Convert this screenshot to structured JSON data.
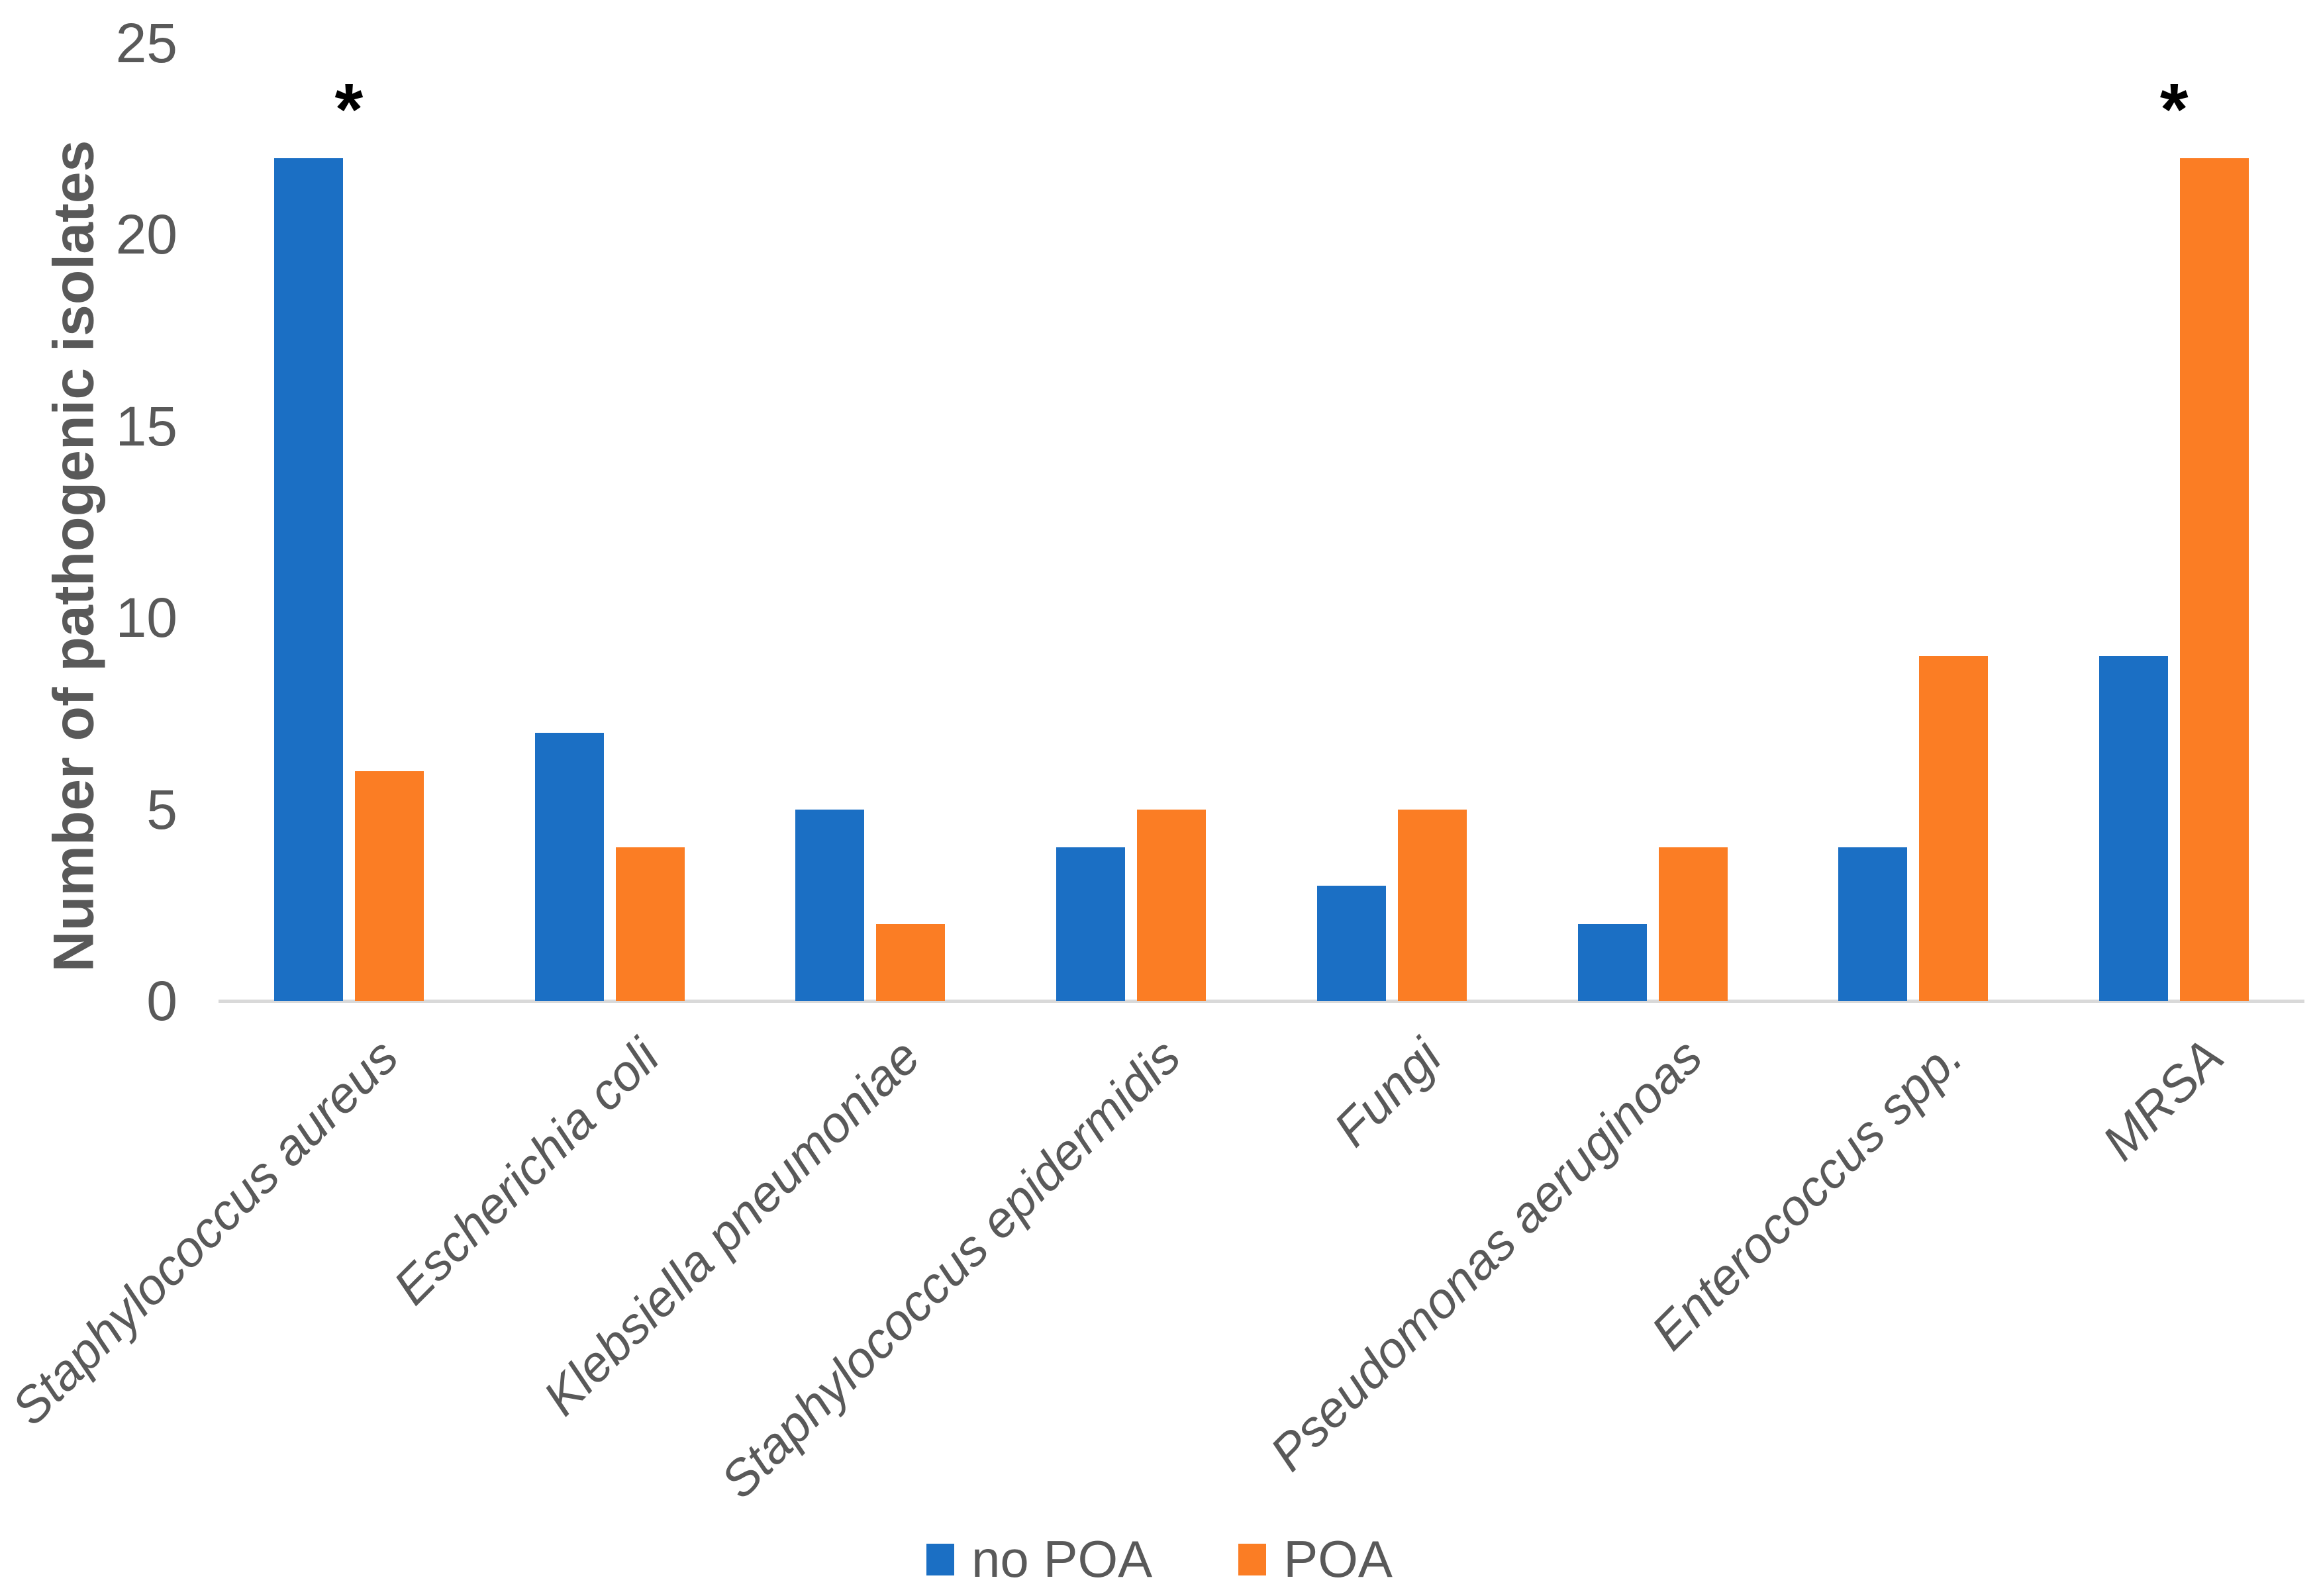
{
  "chart_data": {
    "type": "bar",
    "title": "",
    "ylabel": "Number of pathogenic isolates",
    "xlabel": "",
    "ylim": [
      0,
      25
    ],
    "yticks": [
      0,
      5,
      10,
      15,
      20,
      25
    ],
    "grid": false,
    "legend_position": "bottom",
    "categories": [
      "Staphylococcus aureus",
      "Escherichia coli",
      "Klebsiella pneumoniae",
      "Staphylococcus epidermidis",
      "Fungi",
      "Pseudomonas aeruginoas",
      "Enterococcus spp.",
      "MRSA"
    ],
    "series": [
      {
        "name": "no POA",
        "color": "#1b6fc4",
        "values": [
          22,
          7,
          5,
          4,
          3,
          2,
          4,
          9
        ]
      },
      {
        "name": "POA",
        "color": "#fb7d24",
        "values": [
          6,
          4,
          2,
          5,
          5,
          4,
          9,
          22
        ]
      }
    ],
    "annotations": [
      {
        "category": "Staphylococcus aureus",
        "symbol": "*"
      },
      {
        "category": "MRSA",
        "symbol": "*"
      }
    ]
  },
  "colors": {
    "axis_line": "#d9d9d9",
    "tick_text": "#595959",
    "annotation": "#000000"
  }
}
